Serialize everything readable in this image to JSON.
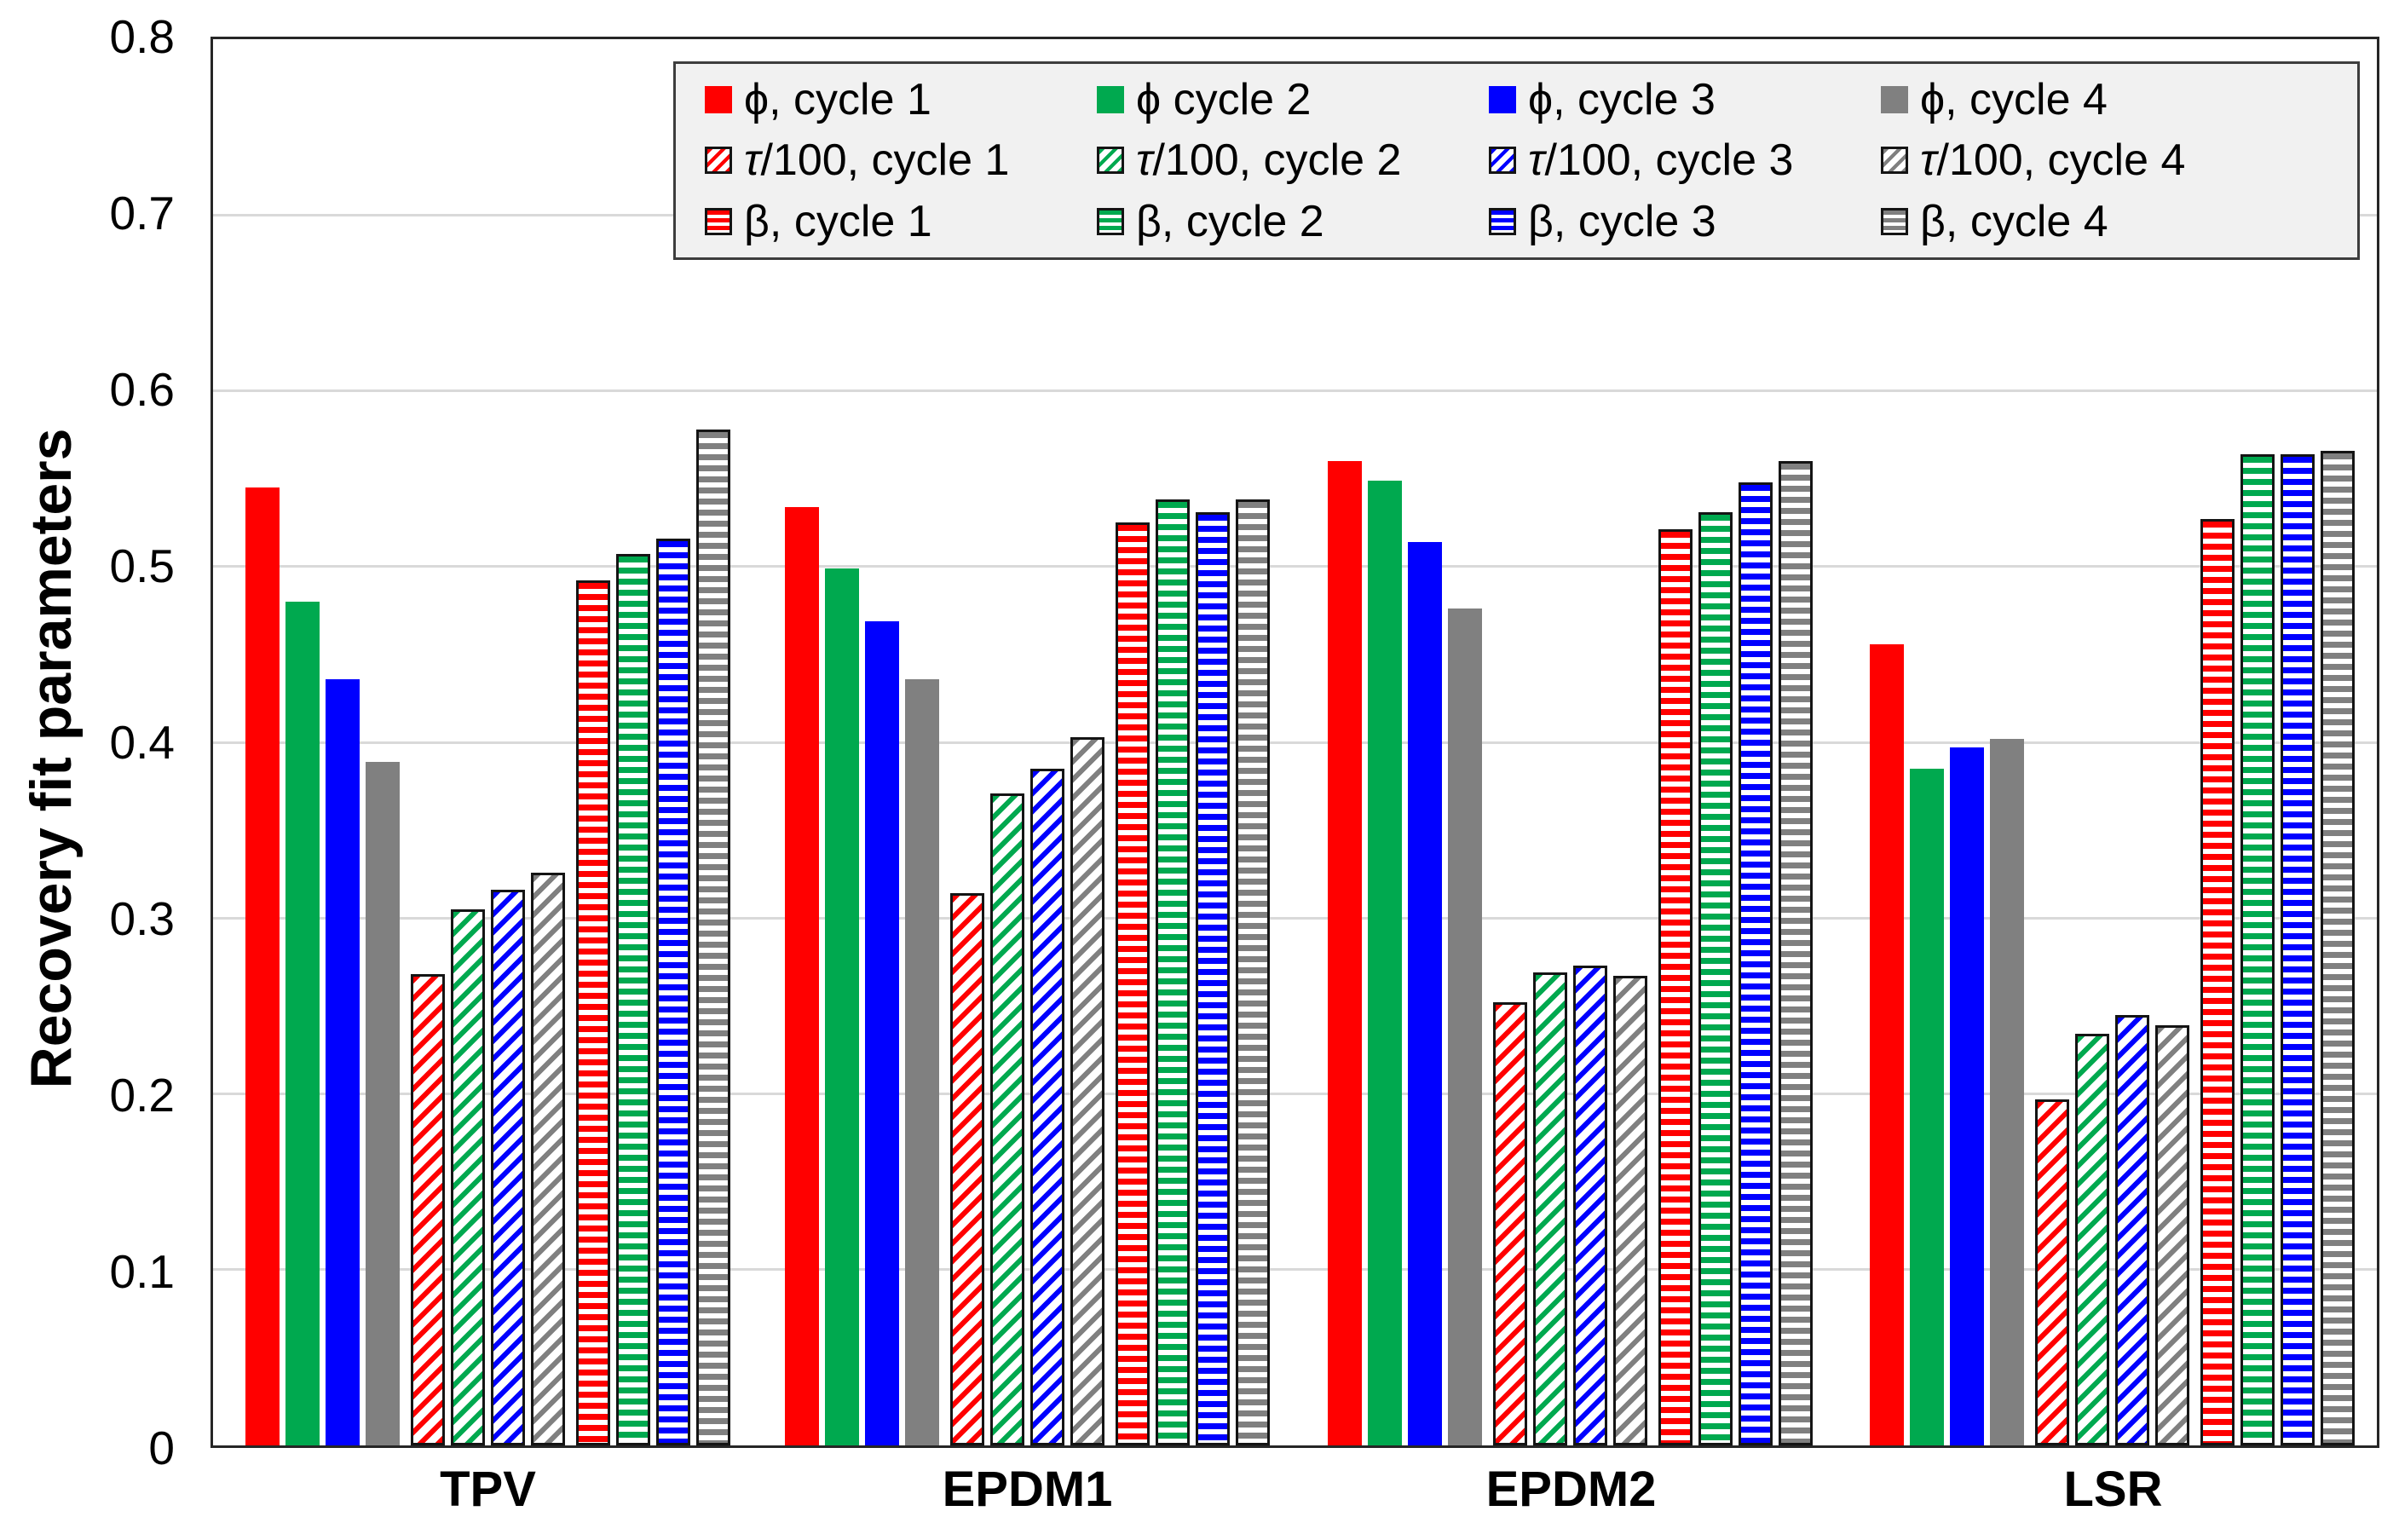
{
  "y_axis": {
    "label": "Recovery fit parameters",
    "min": 0,
    "max": 0.8,
    "ticks": [
      {
        "label": "0.8",
        "value": 0.8
      },
      {
        "label": "0.7",
        "value": 0.7
      },
      {
        "label": "0.6",
        "value": 0.6
      },
      {
        "label": "0.5",
        "value": 0.5
      },
      {
        "label": "0.4",
        "value": 0.4
      },
      {
        "label": "0.3",
        "value": 0.3
      },
      {
        "label": "0.2",
        "value": 0.2
      },
      {
        "label": "0.1",
        "value": 0.1
      },
      {
        "label": "0",
        "value": 0
      }
    ]
  },
  "x_axis": {
    "categories": [
      "TPV",
      "EPDM1",
      "EPDM2",
      "LSR"
    ]
  },
  "colors": {
    "cycle1": "#FF0000",
    "cycle2": "#00A94F",
    "cycle3": "#0000FF",
    "cycle4": "#808080"
  },
  "legend": {
    "items": [
      {
        "symbol": "ϕ",
        "italic": false,
        "rest": ", cycle 1",
        "pattern": "solid",
        "color": "#FF0000"
      },
      {
        "symbol": "ϕ",
        "italic": false,
        "rest": " cycle 2",
        "pattern": "solid",
        "color": "#00A94F"
      },
      {
        "symbol": "ϕ",
        "italic": false,
        "rest": ", cycle 3",
        "pattern": "solid",
        "color": "#0000FF"
      },
      {
        "symbol": "ϕ",
        "italic": false,
        "rest": ", cycle 4",
        "pattern": "solid",
        "color": "#808080"
      },
      {
        "symbol": "τ",
        "italic": true,
        "rest": "/100, cycle 1",
        "pattern": "diagonal",
        "color": "#FF0000"
      },
      {
        "symbol": "τ",
        "italic": true,
        "rest": "/100, cycle 2",
        "pattern": "diagonal",
        "color": "#00A94F"
      },
      {
        "symbol": "τ",
        "italic": true,
        "rest": "/100, cycle 3",
        "pattern": "diagonal",
        "color": "#0000FF"
      },
      {
        "symbol": "τ",
        "italic": true,
        "rest": "/100, cycle 4",
        "pattern": "diagonal",
        "color": "#808080"
      },
      {
        "symbol": "β",
        "italic": false,
        "rest": ", cycle 1",
        "pattern": "hlines",
        "color": "#FF0000"
      },
      {
        "symbol": "β",
        "italic": false,
        "rest": ", cycle 2",
        "pattern": "hlines",
        "color": "#00A94F"
      },
      {
        "symbol": "β",
        "italic": false,
        "rest": ", cycle 3",
        "pattern": "hlines",
        "color": "#0000FF"
      },
      {
        "symbol": "β",
        "italic": false,
        "rest": ", cycle 4",
        "pattern": "hlines",
        "color": "#808080"
      }
    ]
  },
  "chart_data": {
    "type": "bar",
    "title": "",
    "xlabel": "",
    "ylabel": "Recovery fit parameters",
    "ylim": [
      0,
      0.8
    ],
    "grid": true,
    "legend_position": "top-inside",
    "categories": [
      "TPV",
      "EPDM1",
      "EPDM2",
      "LSR"
    ],
    "series": [
      {
        "name": "ϕ, cycle 1",
        "parameter": "phi",
        "cycle": 1,
        "pattern": "solid",
        "color": "#FF0000",
        "values": [
          0.545,
          0.534,
          0.56,
          0.456
        ]
      },
      {
        "name": "ϕ cycle 2",
        "parameter": "phi",
        "cycle": 2,
        "pattern": "solid",
        "color": "#00A94F",
        "values": [
          0.48,
          0.499,
          0.549,
          0.385
        ]
      },
      {
        "name": "ϕ, cycle 3",
        "parameter": "phi",
        "cycle": 3,
        "pattern": "solid",
        "color": "#0000FF",
        "values": [
          0.436,
          0.469,
          0.514,
          0.397
        ]
      },
      {
        "name": "ϕ, cycle 4",
        "parameter": "phi",
        "cycle": 4,
        "pattern": "solid",
        "color": "#808080",
        "values": [
          0.389,
          0.436,
          0.476,
          0.402
        ]
      },
      {
        "name": "τ/100, cycle 1",
        "parameter": "tau",
        "cycle": 1,
        "pattern": "diagonal",
        "color": "#FF0000",
        "values": [
          0.268,
          0.314,
          0.252,
          0.197
        ]
      },
      {
        "name": "τ/100, cycle 2",
        "parameter": "tau",
        "cycle": 2,
        "pattern": "diagonal",
        "color": "#00A94F",
        "values": [
          0.305,
          0.371,
          0.269,
          0.234
        ]
      },
      {
        "name": "τ/100, cycle 3",
        "parameter": "tau",
        "cycle": 3,
        "pattern": "diagonal",
        "color": "#0000FF",
        "values": [
          0.316,
          0.385,
          0.273,
          0.245
        ]
      },
      {
        "name": "τ/100, cycle 4",
        "parameter": "tau",
        "cycle": 4,
        "pattern": "diagonal",
        "color": "#808080",
        "values": [
          0.326,
          0.403,
          0.267,
          0.239
        ]
      },
      {
        "name": "β, cycle 1",
        "parameter": "beta",
        "cycle": 1,
        "pattern": "hlines",
        "color": "#FF0000",
        "values": [
          0.492,
          0.525,
          0.521,
          0.527
        ]
      },
      {
        "name": "β, cycle 2",
        "parameter": "beta",
        "cycle": 2,
        "pattern": "hlines",
        "color": "#00A94F",
        "values": [
          0.507,
          0.538,
          0.531,
          0.564
        ]
      },
      {
        "name": "β, cycle 3",
        "parameter": "beta",
        "cycle": 3,
        "pattern": "hlines",
        "color": "#0000FF",
        "values": [
          0.516,
          0.531,
          0.548,
          0.564
        ]
      },
      {
        "name": "β, cycle 4",
        "parameter": "beta",
        "cycle": 4,
        "pattern": "hlines",
        "color": "#808080",
        "values": [
          0.578,
          0.538,
          0.56,
          0.566
        ]
      }
    ]
  }
}
